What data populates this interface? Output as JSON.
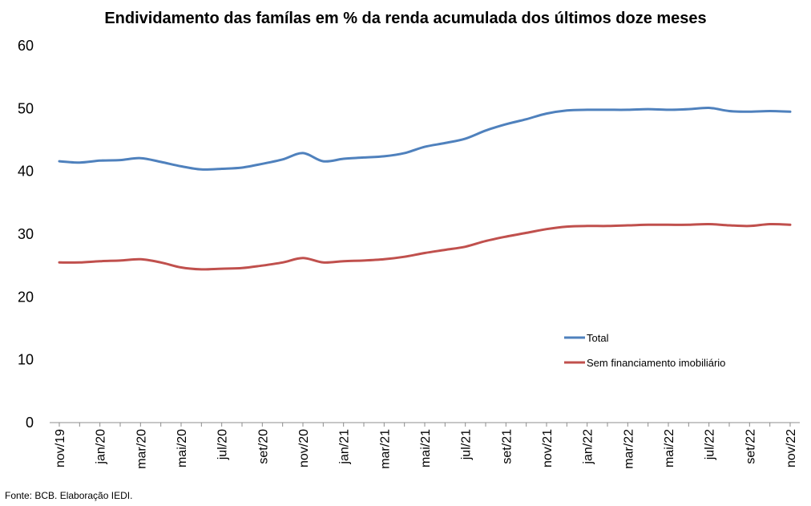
{
  "chart_data": {
    "type": "line",
    "title": "Endividamento das famílas em % da renda acumulada dos últimos doze meses",
    "xlabel": "",
    "ylabel": "",
    "ylim": [
      0,
      60
    ],
    "yticks": [
      "0",
      "10",
      "20",
      "30",
      "40",
      "50",
      "60"
    ],
    "grid": false,
    "legend_position": "center-right",
    "x": [
      "nov/19",
      "dez/19",
      "jan/20",
      "fev/20",
      "mar/20",
      "abr/20",
      "mai/20",
      "jun/20",
      "jul/20",
      "ago/20",
      "set/20",
      "out/20",
      "nov/20",
      "dez/20",
      "jan/21",
      "fev/21",
      "mar/21",
      "abr/21",
      "mai/21",
      "jun/21",
      "jul/21",
      "ago/21",
      "set/21",
      "out/21",
      "nov/21",
      "dez/21",
      "jan/22",
      "fev/22",
      "mar/22",
      "abr/22",
      "mai/22",
      "jun/22",
      "jul/22",
      "ago/22",
      "set/22",
      "out/22",
      "nov/22"
    ],
    "tick_labels": [
      "nov/19",
      "jan/20",
      "mar/20",
      "mai/20",
      "jul/20",
      "set/20",
      "nov/20",
      "jan/21",
      "mar/21",
      "mai/21",
      "jul/21",
      "set/21",
      "nov/21",
      "jan/22",
      "mar/22",
      "mai/22",
      "jul/22",
      "set/22",
      "nov/22"
    ],
    "series": [
      {
        "name": "Total",
        "color": "#4F81BD",
        "values": [
          41.6,
          41.4,
          41.7,
          41.8,
          42.1,
          41.5,
          40.8,
          40.3,
          40.4,
          40.6,
          41.2,
          41.9,
          42.9,
          41.6,
          42.0,
          42.2,
          42.4,
          42.9,
          43.9,
          44.5,
          45.2,
          46.5,
          47.5,
          48.3,
          49.2,
          49.7,
          49.8,
          49.8,
          49.8,
          49.9,
          49.8,
          49.9,
          50.1,
          49.6,
          49.5,
          49.6,
          49.5
        ]
      },
      {
        "name": "Sem financiamento imobiliário",
        "color": "#C0504D",
        "values": [
          25.5,
          25.5,
          25.7,
          25.8,
          26.0,
          25.5,
          24.7,
          24.4,
          24.5,
          24.6,
          25.0,
          25.5,
          26.2,
          25.5,
          25.7,
          25.8,
          26.0,
          26.4,
          27.0,
          27.5,
          28.0,
          28.9,
          29.6,
          30.2,
          30.8,
          31.2,
          31.3,
          31.3,
          31.4,
          31.5,
          31.5,
          31.5,
          31.6,
          31.4,
          31.3,
          31.6,
          31.5
        ]
      }
    ]
  },
  "footer": {
    "source": "Fonte: BCB. Elaboração IEDI."
  }
}
